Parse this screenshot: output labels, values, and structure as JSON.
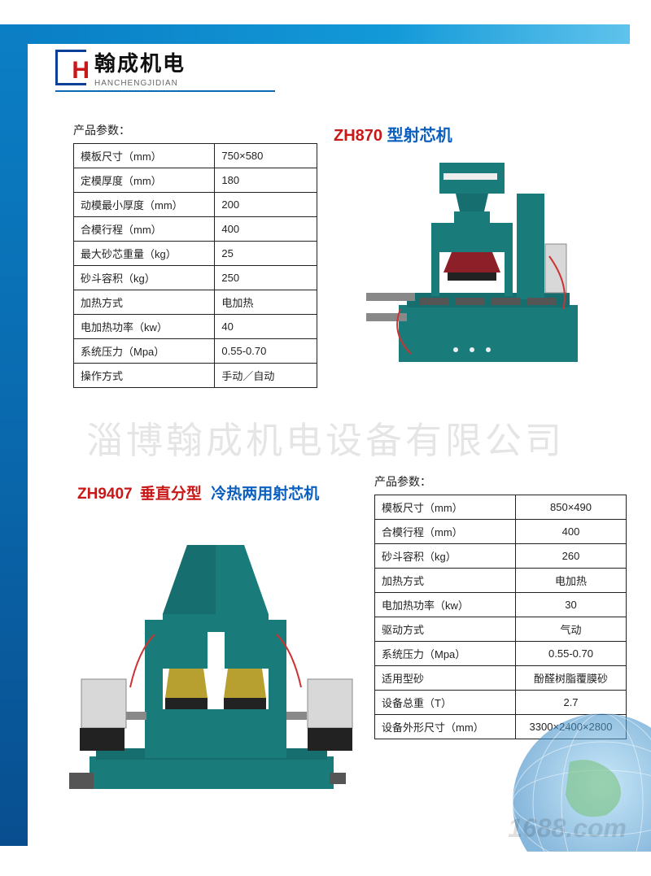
{
  "colors": {
    "red": "#c81818",
    "blue": "#0a5fbf",
    "bar_blue": "#0a7fc5",
    "machine_green": "#1a7b7b",
    "machine_red": "#8d1f28",
    "border": "#222222"
  },
  "typography": {
    "brand_cn_fontsize": 26,
    "brand_en_fontsize": 10,
    "title_fontsize": 20,
    "table_fontsize": 13,
    "watermark_fontsize": 45
  },
  "header": {
    "logo_letter": "H",
    "brand_cn": "翰成机电",
    "brand_en": "HANCHENGJIDIAN"
  },
  "watermark": "淄博翰成机电设备有限公司",
  "watermark2": "1688.com",
  "product1": {
    "model": "ZH870",
    "suffix": "型射芯机",
    "params_label": "产品参数：",
    "rows": [
      {
        "label": "模板尺寸（mm）",
        "value": "750×580"
      },
      {
        "label": "定模厚度（mm）",
        "value": "180"
      },
      {
        "label": "动模最小厚度（mm）",
        "value": "200"
      },
      {
        "label": "合模行程（mm）",
        "value": "400"
      },
      {
        "label": "最大砂芯重量（kg）",
        "value": "25"
      },
      {
        "label": "砂斗容积（kg）",
        "value": "250"
      },
      {
        "label": "加热方式",
        "value": "电加热"
      },
      {
        "label": "电加热功率（kw）",
        "value": "40"
      },
      {
        "label": "系统压力（Mpa）",
        "value": "0.55-0.70"
      },
      {
        "label": "操作方式",
        "value": "手动／自动"
      }
    ]
  },
  "product2": {
    "model": "ZH9407",
    "mid": "垂直分型",
    "suffix": "冷热两用射芯机",
    "params_label": "产品参数：",
    "rows": [
      {
        "label": "模板尺寸（mm）",
        "value": "850×490"
      },
      {
        "label": "合模行程（mm）",
        "value": "400"
      },
      {
        "label": "砂斗容积（kg）",
        "value": "260"
      },
      {
        "label": "加热方式",
        "value": "电加热"
      },
      {
        "label": "电加热功率（kw）",
        "value": "30"
      },
      {
        "label": "驱动方式",
        "value": "气动"
      },
      {
        "label": "系统压力（Mpa）",
        "value": "0.55-0.70"
      },
      {
        "label": "适用型砂",
        "value": "酚醛树脂覆膜砂"
      },
      {
        "label": "设备总重（T）",
        "value": "2.7"
      },
      {
        "label": "设备外形尺寸（mm）",
        "value": "3300×2400×2800"
      }
    ]
  }
}
